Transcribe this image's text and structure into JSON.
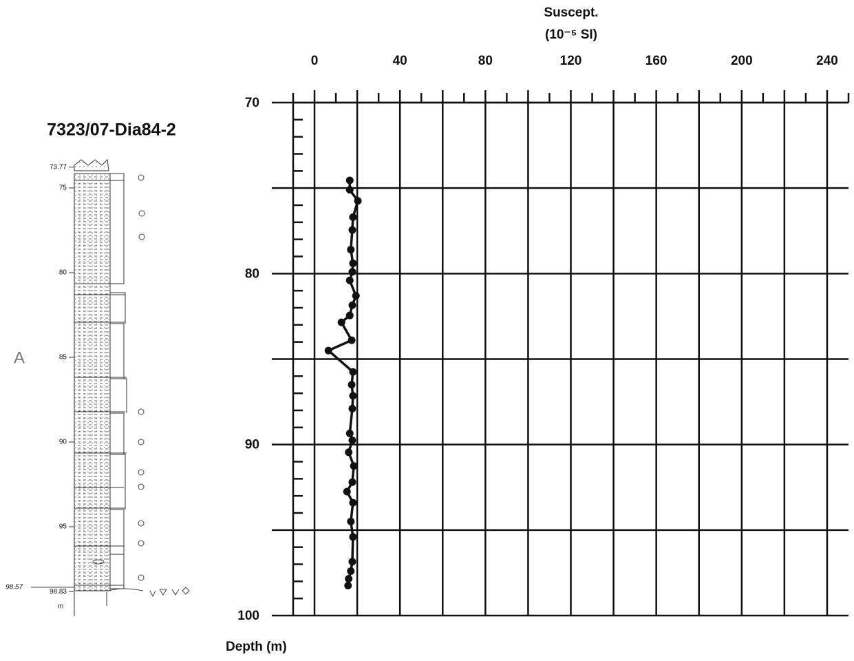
{
  "chart_data": {
    "type": "line",
    "x_label": "Suscept.",
    "x_unit": "(10⁻⁵ SI)",
    "y_label": "Depth (m)",
    "xlim": [
      -10,
      250
    ],
    "ylim": [
      100,
      70
    ],
    "xticks": [
      0,
      40,
      80,
      120,
      160,
      200,
      240
    ],
    "xgridlines": [
      0,
      20,
      40,
      60,
      80,
      100,
      120,
      140,
      160,
      180,
      200,
      220,
      240
    ],
    "xminorticks": [
      10,
      30,
      50,
      70,
      90,
      110,
      130,
      150,
      170,
      190,
      210,
      230
    ],
    "yticks": [
      70,
      80,
      90,
      100
    ],
    "ygridlines": [
      70,
      75,
      80,
      85,
      90,
      95,
      100
    ],
    "yminorticks": [
      71,
      72,
      73,
      74,
      76,
      77,
      78,
      79,
      81,
      82,
      83,
      84,
      86,
      87,
      88,
      89,
      91,
      92,
      93,
      94,
      96,
      97,
      98,
      99
    ],
    "grid": true,
    "series": [
      {
        "color": "#111111",
        "x": [
          16.5,
          16.5,
          20.3,
          18,
          17.7,
          17,
          18,
          17.7,
          16.5,
          19.4,
          17.7,
          16.5,
          12.6,
          17.4,
          6.5,
          18,
          17.4,
          18,
          17.7,
          16.5,
          17.7,
          16,
          18.4,
          17.7,
          15.2,
          18,
          17,
          18,
          17.7,
          17,
          16,
          15.7
        ],
        "values": [
          74.55,
          75.1,
          75.75,
          76.7,
          77.45,
          78.6,
          79.4,
          79.9,
          80.4,
          81.3,
          81.85,
          82.45,
          82.85,
          83.9,
          84.5,
          85.75,
          86.5,
          87.15,
          87.9,
          89.35,
          89.75,
          90.45,
          91.25,
          92.2,
          92.75,
          93.4,
          94.5,
          95.4,
          96.85,
          97.4,
          97.85,
          98.25
        ]
      }
    ]
  },
  "log_column": {
    "title": "7323/07-Dia84-2",
    "panel_label": "A",
    "unit": "m",
    "depth_labels": [
      73.77,
      75,
      80,
      85,
      90,
      95,
      98.83
    ],
    "base_label": 98.57
  }
}
